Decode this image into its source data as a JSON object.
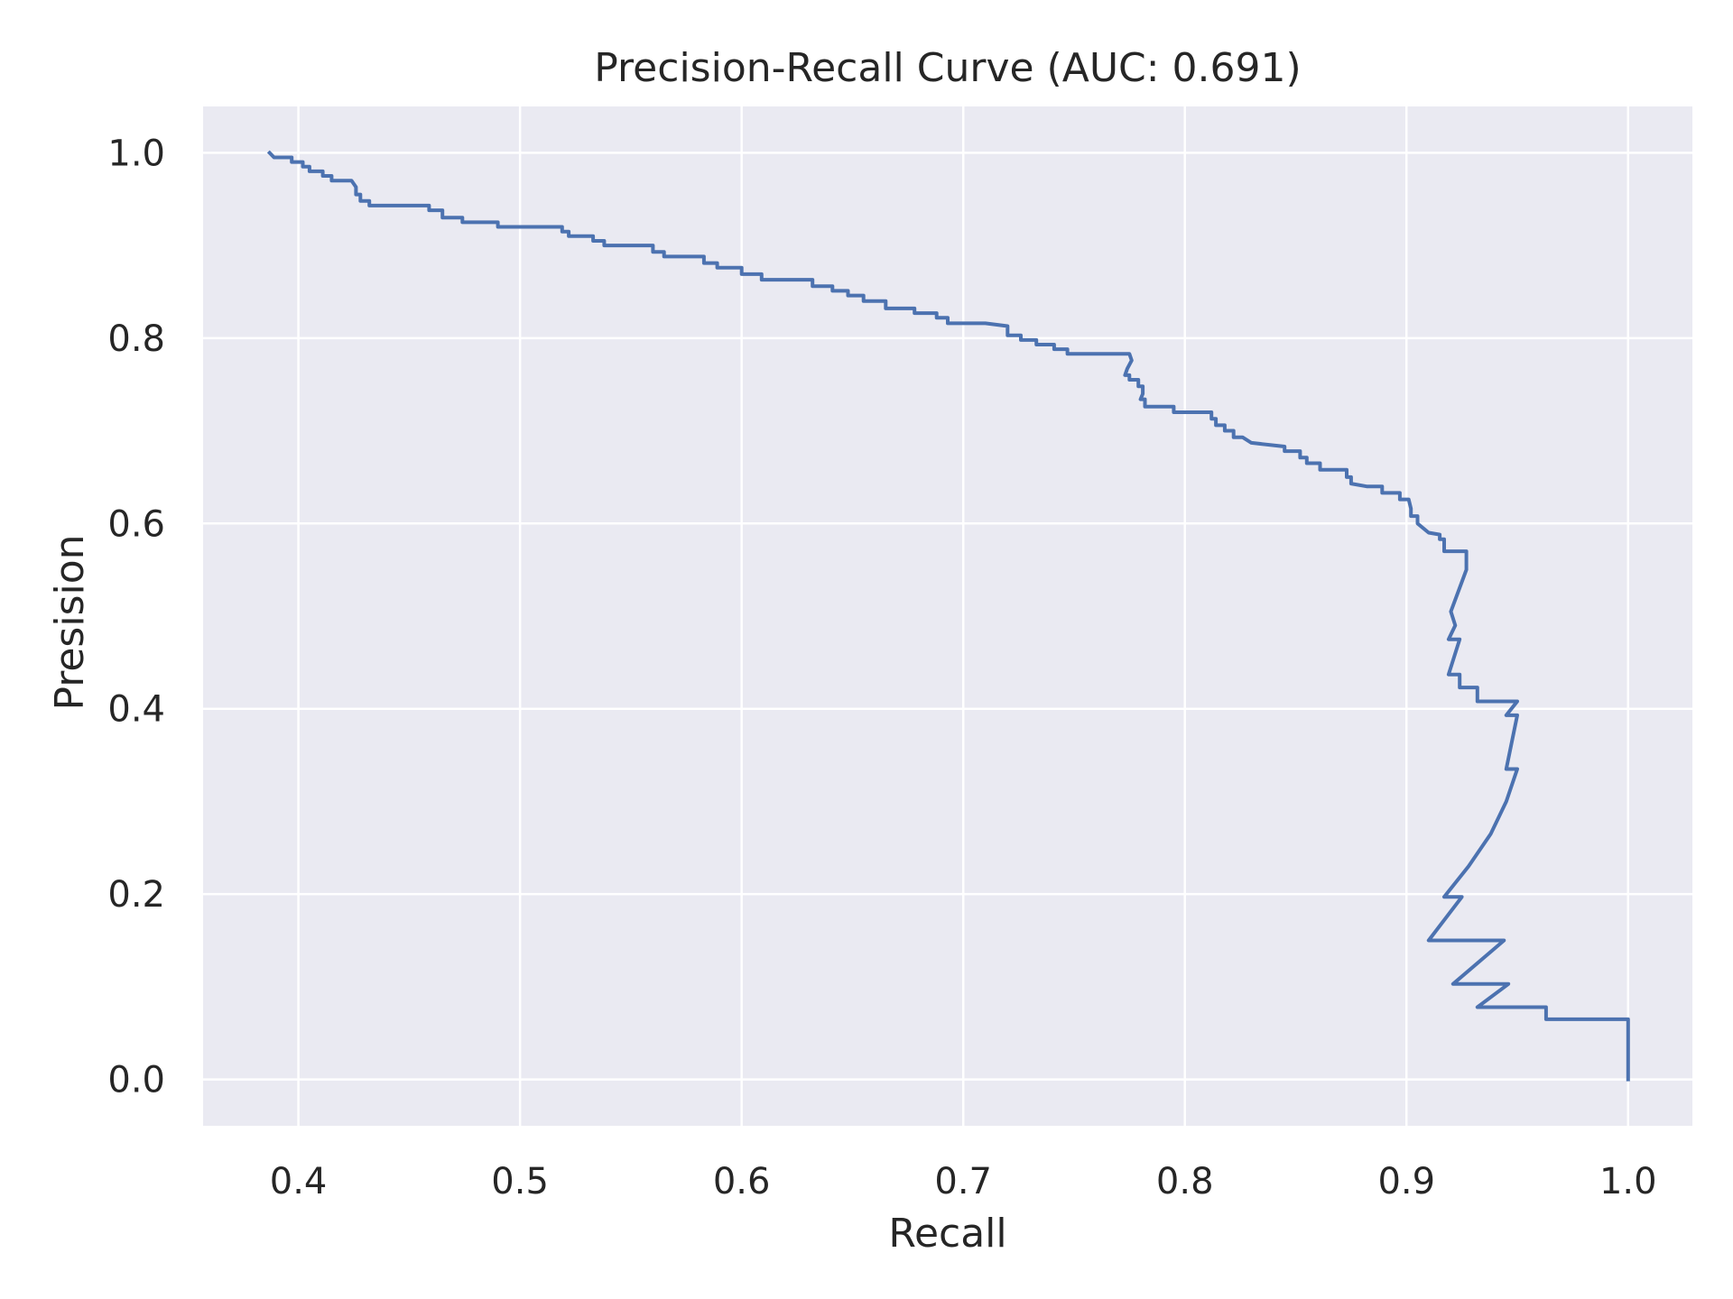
{
  "chart_data": {
    "type": "line",
    "title": "Precision-Recall Curve (AUC: 0.691)",
    "xlabel": "Recall",
    "ylabel": "Presision",
    "xlim": [
      0.357,
      1.029
    ],
    "ylim": [
      -0.05,
      1.05
    ],
    "x_ticks": [
      0.4,
      0.5,
      0.6,
      0.7,
      0.8,
      0.9,
      1.0
    ],
    "x_tick_labels": [
      "0.4",
      "0.5",
      "0.6",
      "0.7",
      "0.8",
      "0.9",
      "1.0"
    ],
    "y_ticks": [
      0.0,
      0.2,
      0.4,
      0.6,
      0.8,
      1.0
    ],
    "y_tick_labels": [
      "0.0",
      "0.2",
      "0.4",
      "0.6",
      "0.8",
      "1.0"
    ],
    "grid": true,
    "legend": "none",
    "colors": {
      "plot_background": "#EAEAF2",
      "grid": "#FFFFFF",
      "line": "#4C72B0",
      "text": "#262626"
    },
    "series": [
      {
        "points": [
          [
            0.387,
            1.0
          ],
          [
            0.389,
            0.995
          ],
          [
            0.397,
            0.995
          ],
          [
            0.397,
            0.99
          ],
          [
            0.402,
            0.99
          ],
          [
            0.402,
            0.985
          ],
          [
            0.405,
            0.985
          ],
          [
            0.405,
            0.98
          ],
          [
            0.411,
            0.98
          ],
          [
            0.411,
            0.975
          ],
          [
            0.415,
            0.975
          ],
          [
            0.415,
            0.97
          ],
          [
            0.424,
            0.97
          ],
          [
            0.426,
            0.963
          ],
          [
            0.426,
            0.955
          ],
          [
            0.428,
            0.955
          ],
          [
            0.428,
            0.948
          ],
          [
            0.432,
            0.948
          ],
          [
            0.432,
            0.943
          ],
          [
            0.459,
            0.943
          ],
          [
            0.459,
            0.938
          ],
          [
            0.465,
            0.938
          ],
          [
            0.465,
            0.93
          ],
          [
            0.474,
            0.93
          ],
          [
            0.474,
            0.925
          ],
          [
            0.49,
            0.925
          ],
          [
            0.49,
            0.92
          ],
          [
            0.519,
            0.92
          ],
          [
            0.519,
            0.915
          ],
          [
            0.522,
            0.915
          ],
          [
            0.522,
            0.91
          ],
          [
            0.533,
            0.91
          ],
          [
            0.533,
            0.905
          ],
          [
            0.538,
            0.905
          ],
          [
            0.538,
            0.9
          ],
          [
            0.56,
            0.9
          ],
          [
            0.56,
            0.893
          ],
          [
            0.565,
            0.893
          ],
          [
            0.565,
            0.888
          ],
          [
            0.583,
            0.888
          ],
          [
            0.583,
            0.881
          ],
          [
            0.589,
            0.881
          ],
          [
            0.589,
            0.876
          ],
          [
            0.6,
            0.876
          ],
          [
            0.6,
            0.869
          ],
          [
            0.609,
            0.869
          ],
          [
            0.609,
            0.863
          ],
          [
            0.632,
            0.863
          ],
          [
            0.632,
            0.856
          ],
          [
            0.641,
            0.856
          ],
          [
            0.641,
            0.851
          ],
          [
            0.648,
            0.851
          ],
          [
            0.648,
            0.846
          ],
          [
            0.655,
            0.846
          ],
          [
            0.655,
            0.84
          ],
          [
            0.665,
            0.84
          ],
          [
            0.665,
            0.832
          ],
          [
            0.678,
            0.832
          ],
          [
            0.678,
            0.827
          ],
          [
            0.688,
            0.827
          ],
          [
            0.688,
            0.822
          ],
          [
            0.693,
            0.822
          ],
          [
            0.693,
            0.816
          ],
          [
            0.71,
            0.816
          ],
          [
            0.72,
            0.813
          ],
          [
            0.72,
            0.808
          ],
          [
            0.72,
            0.803
          ],
          [
            0.726,
            0.803
          ],
          [
            0.726,
            0.798
          ],
          [
            0.733,
            0.798
          ],
          [
            0.733,
            0.793
          ],
          [
            0.741,
            0.793
          ],
          [
            0.741,
            0.788
          ],
          [
            0.747,
            0.788
          ],
          [
            0.747,
            0.783
          ],
          [
            0.763,
            0.783
          ],
          [
            0.775,
            0.783
          ],
          [
            0.776,
            0.776
          ],
          [
            0.774,
            0.767
          ],
          [
            0.773,
            0.76
          ],
          [
            0.775,
            0.76
          ],
          [
            0.775,
            0.755
          ],
          [
            0.779,
            0.755
          ],
          [
            0.779,
            0.748
          ],
          [
            0.781,
            0.748
          ],
          [
            0.781,
            0.74
          ],
          [
            0.78,
            0.734
          ],
          [
            0.782,
            0.734
          ],
          [
            0.782,
            0.726
          ],
          [
            0.786,
            0.726
          ],
          [
            0.795,
            0.726
          ],
          [
            0.795,
            0.72
          ],
          [
            0.812,
            0.72
          ],
          [
            0.812,
            0.713
          ],
          [
            0.814,
            0.713
          ],
          [
            0.814,
            0.706
          ],
          [
            0.818,
            0.706
          ],
          [
            0.818,
            0.7
          ],
          [
            0.822,
            0.7
          ],
          [
            0.822,
            0.693
          ],
          [
            0.826,
            0.693
          ],
          [
            0.83,
            0.687
          ],
          [
            0.845,
            0.683
          ],
          [
            0.845,
            0.678
          ],
          [
            0.852,
            0.678
          ],
          [
            0.852,
            0.671
          ],
          [
            0.855,
            0.671
          ],
          [
            0.855,
            0.665
          ],
          [
            0.861,
            0.665
          ],
          [
            0.861,
            0.658
          ],
          [
            0.873,
            0.658
          ],
          [
            0.873,
            0.65
          ],
          [
            0.875,
            0.65
          ],
          [
            0.875,
            0.643
          ],
          [
            0.882,
            0.64
          ],
          [
            0.889,
            0.64
          ],
          [
            0.889,
            0.633
          ],
          [
            0.897,
            0.633
          ],
          [
            0.897,
            0.626
          ],
          [
            0.901,
            0.626
          ],
          [
            0.902,
            0.616
          ],
          [
            0.902,
            0.608
          ],
          [
            0.905,
            0.608
          ],
          [
            0.905,
            0.6
          ],
          [
            0.91,
            0.59
          ],
          [
            0.915,
            0.588
          ],
          [
            0.915,
            0.583
          ],
          [
            0.917,
            0.583
          ],
          [
            0.917,
            0.57
          ],
          [
            0.927,
            0.57
          ],
          [
            0.927,
            0.55
          ],
          [
            0.92,
            0.505
          ],
          [
            0.922,
            0.49
          ],
          [
            0.919,
            0.475
          ],
          [
            0.924,
            0.475
          ],
          [
            0.919,
            0.437
          ],
          [
            0.924,
            0.437
          ],
          [
            0.924,
            0.423
          ],
          [
            0.932,
            0.423
          ],
          [
            0.932,
            0.408
          ],
          [
            0.95,
            0.408
          ],
          [
            0.945,
            0.393
          ],
          [
            0.95,
            0.393
          ],
          [
            0.945,
            0.335
          ],
          [
            0.95,
            0.335
          ],
          [
            0.945,
            0.3
          ],
          [
            0.938,
            0.265
          ],
          [
            0.928,
            0.23
          ],
          [
            0.917,
            0.197
          ],
          [
            0.925,
            0.197
          ],
          [
            0.91,
            0.15
          ],
          [
            0.944,
            0.15
          ],
          [
            0.921,
            0.103
          ],
          [
            0.946,
            0.103
          ],
          [
            0.932,
            0.078
          ],
          [
            0.963,
            0.078
          ],
          [
            0.963,
            0.065
          ],
          [
            1.0,
            0.065
          ],
          [
            1.0,
            0.0
          ]
        ]
      }
    ]
  }
}
